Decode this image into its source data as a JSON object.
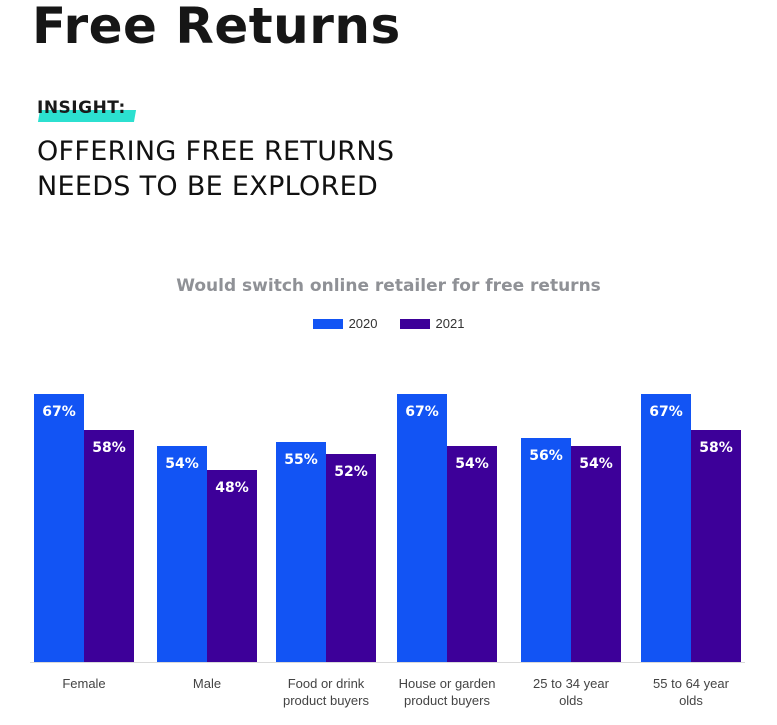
{
  "page": {
    "title": "Free Returns",
    "insight_label": "INSIGHT:",
    "headline_lines": [
      "OFFERING FREE RETURNS",
      "NEEDS TO BE EXPLORED"
    ]
  },
  "chart_data": {
    "type": "bar",
    "title": "Would switch online retailer for free returns",
    "categories": [
      [
        "Female"
      ],
      [
        "Male"
      ],
      [
        "Food or drink",
        "product buyers"
      ],
      [
        "House or garden",
        "product buyers"
      ],
      [
        "25 to 34 year",
        "olds"
      ],
      [
        "55 to 64 year",
        "olds"
      ]
    ],
    "series": [
      {
        "name": "2020",
        "color": "#1254f4",
        "values": [
          67,
          54,
          55,
          67,
          56,
          67
        ]
      },
      {
        "name": "2021",
        "color": "#3d0099",
        "values": [
          58,
          48,
          52,
          54,
          54,
          58
        ]
      }
    ],
    "value_suffix": "%",
    "ylim": [
      0,
      70
    ],
    "legend": "top-center",
    "grid": false
  }
}
